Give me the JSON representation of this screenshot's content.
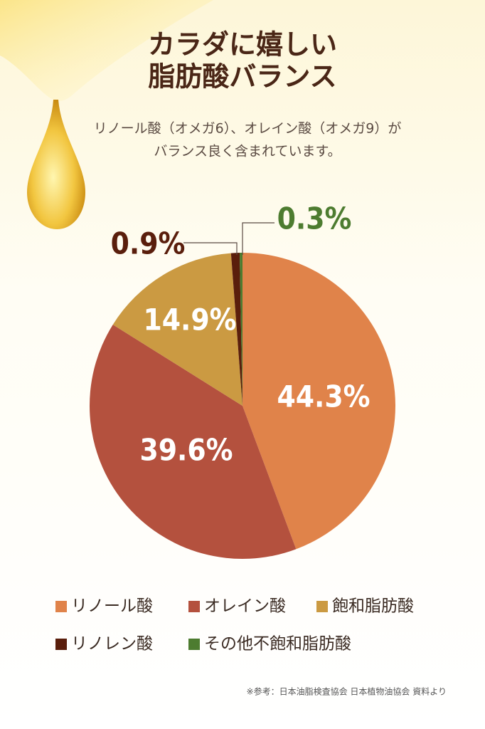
{
  "chart_data": {
    "type": "pie",
    "title": [
      "カラダに嬉しい",
      "脂肪酸バランス"
    ],
    "subtitle": [
      "リノール酸（オメガ6）、オレイン酸（オメガ9）が",
      "バランス良く含まれています。"
    ],
    "categories": [
      "リノール酸",
      "オレイン酸",
      "飽和脂肪酸",
      "リノレン酸",
      "その他不飽和脂肪酸"
    ],
    "values": [
      44.3,
      39.6,
      14.9,
      0.9,
      0.3
    ],
    "value_labels": [
      "44.3%",
      "39.6%",
      "14.9%",
      "0.9%",
      "0.3%"
    ],
    "colors": [
      "#e0834a",
      "#b4513e",
      "#cb9a42",
      "#5a1e0c",
      "#4d7c30"
    ],
    "source": "※参考：日本油脂検査協会 日本植物油協会 資料より"
  }
}
